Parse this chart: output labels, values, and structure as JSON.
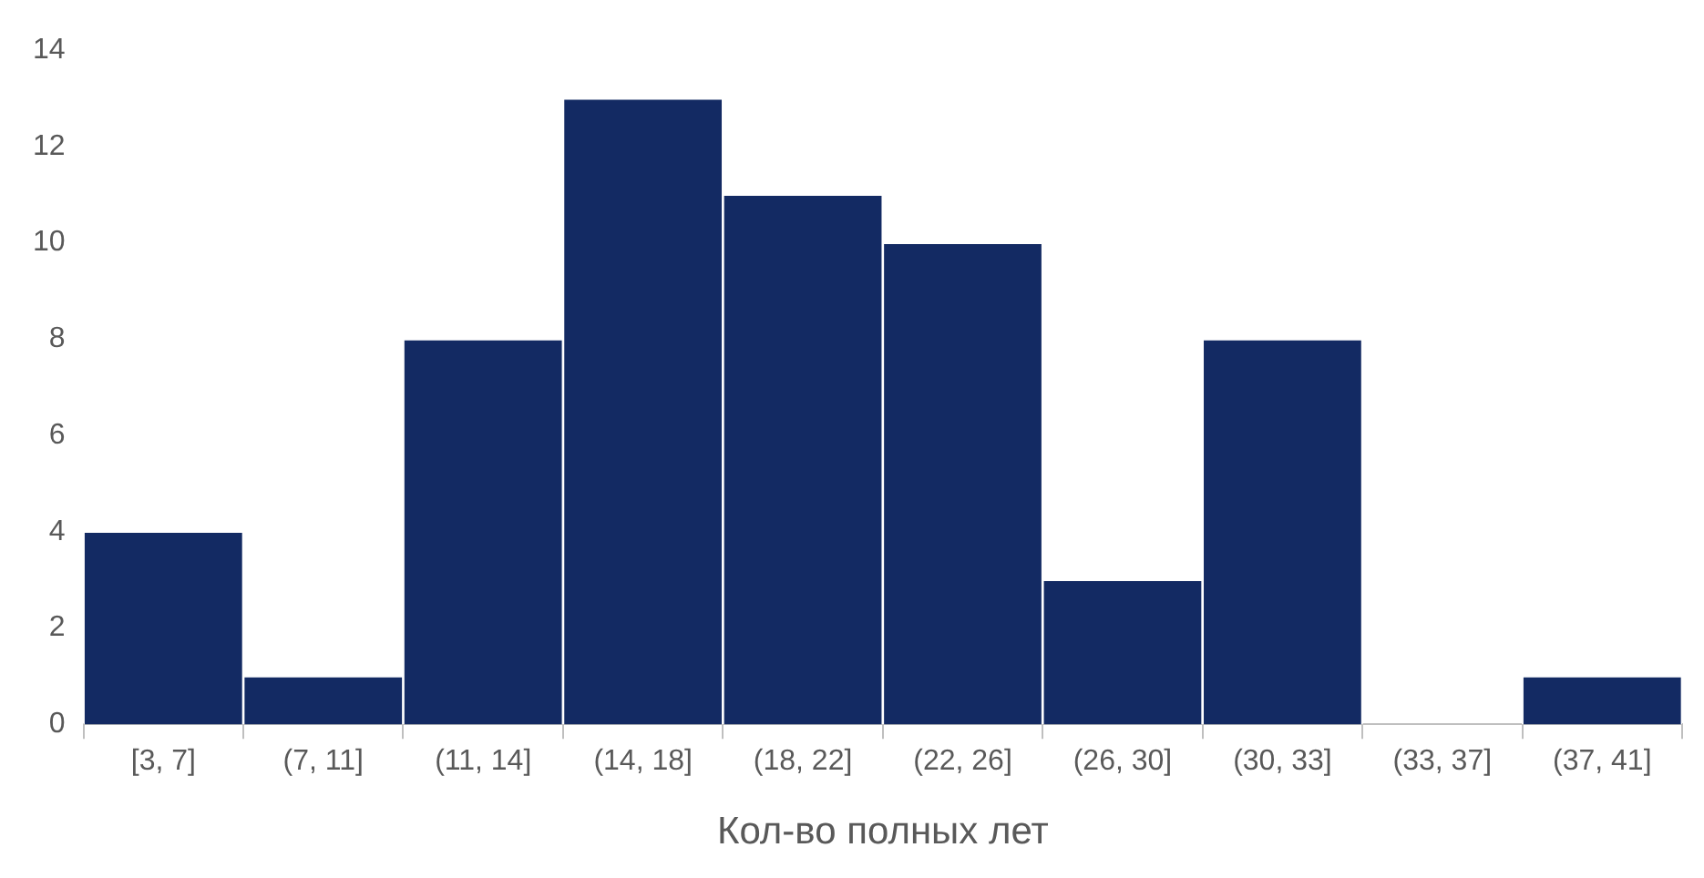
{
  "chart_data": {
    "type": "bar",
    "xlabel": "Кол-во полных лет",
    "categories": [
      "[3, 7]",
      "(7, 11]",
      "(11, 14]",
      "(14, 18]",
      "(18, 22]",
      "(22, 26]",
      "(26, 30]",
      "(30, 33]",
      "(33, 37]",
      "(37, 41]"
    ],
    "values": [
      4,
      1,
      8,
      13,
      11,
      10,
      3,
      8,
      0,
      1
    ],
    "color": "#132a63",
    "ylim": [
      0,
      14
    ],
    "yticks": [
      0,
      2,
      4,
      6,
      8,
      10,
      12,
      14
    ],
    "grid": false,
    "legend": false
  }
}
